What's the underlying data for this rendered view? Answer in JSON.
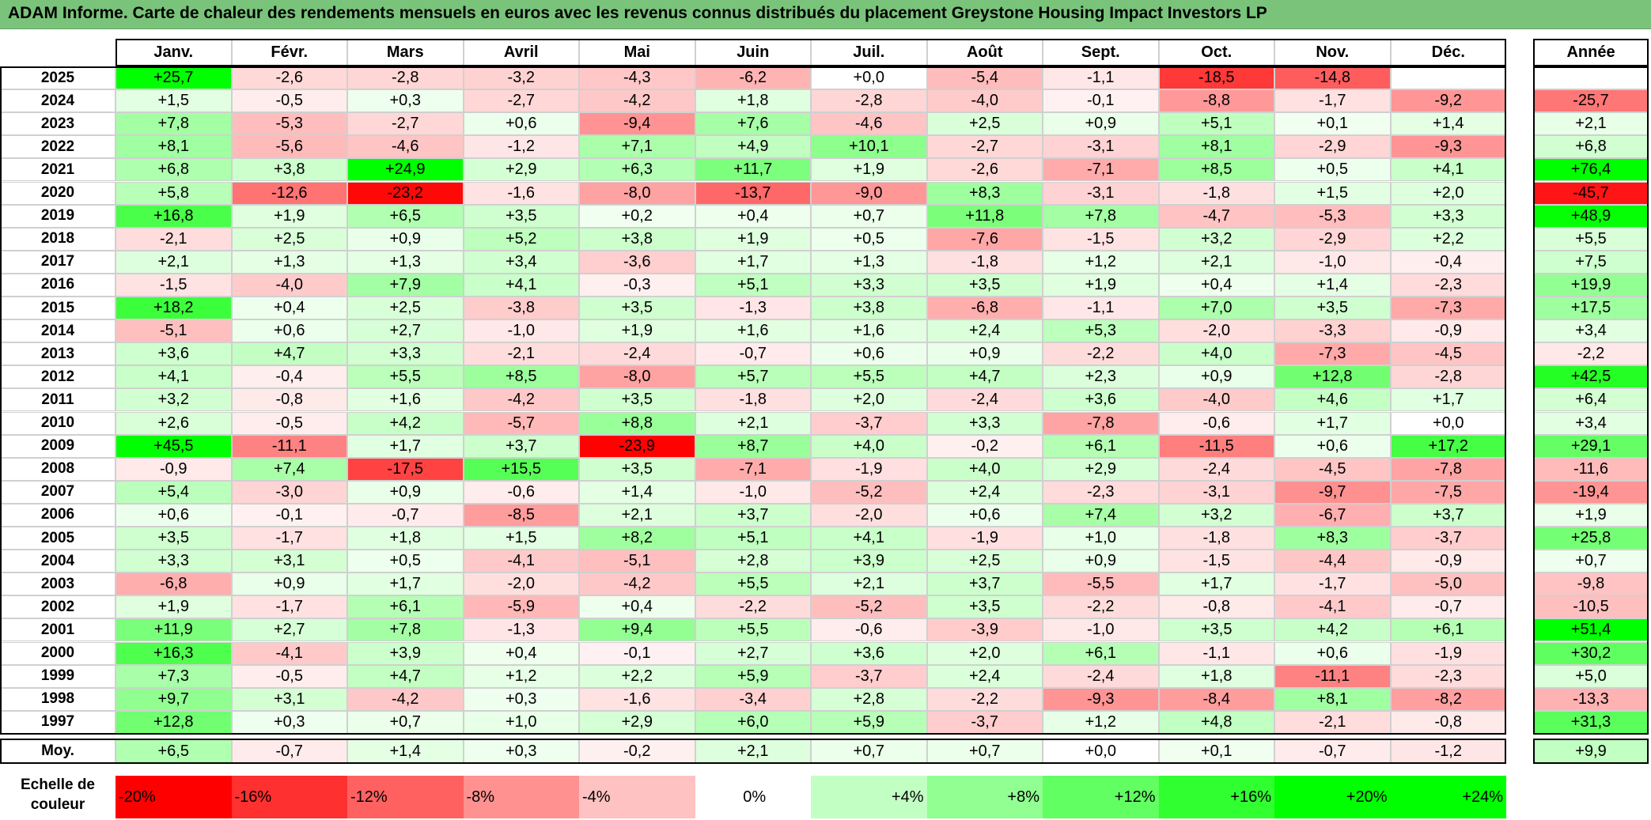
{
  "title": "ADAM Informe. Carte de chaleur des rendements mensuels en euros avec les revenus connus distribués du placement Greystone Housing Impact Investors LP",
  "columns": [
    "Janv.",
    "Févr.",
    "Mars",
    "Avril",
    "Mai",
    "Juin",
    "Juil.",
    "Août",
    "Sept.",
    "Oct.",
    "Nov.",
    "Déc."
  ],
  "year_column_label": "Année",
  "average_label": "Moy.",
  "scale_label": "Echelle de couleur",
  "colors": {
    "red": "#ff0000",
    "white": "#ffffff",
    "green": "#00ff00",
    "title_bar": "#79c47a"
  },
  "scale": [
    {
      "label": "-20%",
      "value": -20
    },
    {
      "label": "-16%",
      "value": -16
    },
    {
      "label": "-12%",
      "value": -12
    },
    {
      "label": "-8%",
      "value": -8
    },
    {
      "label": "-4%",
      "value": -4
    },
    {
      "label": "0%",
      "value": 0
    },
    {
      "label": "+4%",
      "value": 4
    },
    {
      "label": "+8%",
      "value": 8
    },
    {
      "label": "+12%",
      "value": 12
    },
    {
      "label": "+16%",
      "value": 16
    },
    {
      "label": "+20%",
      "value": 20
    },
    {
      "label": "+24%",
      "value": 24
    }
  ],
  "chart_data": {
    "type": "heatmap",
    "title": "ADAM Informe. Carte de chaleur des rendements mensuels en euros avec les revenus connus distribués du placement Greystone Housing Impact Investors LP",
    "rows": [
      {
        "year": "2025",
        "values": [
          25.7,
          -2.6,
          -2.8,
          -3.2,
          -4.3,
          -6.2,
          0.0,
          -5.4,
          -1.1,
          -18.5,
          -14.8,
          null
        ],
        "annual": null
      },
      {
        "year": "2024",
        "values": [
          1.5,
          -0.5,
          0.3,
          -2.7,
          -4.2,
          1.8,
          -2.8,
          -4.0,
          -0.1,
          -8.8,
          -1.7,
          -9.2
        ],
        "annual": -25.7
      },
      {
        "year": "2023",
        "values": [
          7.8,
          -5.3,
          -2.7,
          0.6,
          -9.4,
          7.6,
          -4.6,
          2.5,
          0.9,
          5.1,
          0.1,
          1.4
        ],
        "annual": 2.1
      },
      {
        "year": "2022",
        "values": [
          8.1,
          -5.6,
          -4.6,
          -1.2,
          7.1,
          4.9,
          10.1,
          -2.7,
          -3.1,
          8.1,
          -2.9,
          -9.3
        ],
        "annual": 6.8
      },
      {
        "year": "2021",
        "values": [
          6.8,
          3.8,
          24.9,
          2.9,
          6.3,
          11.7,
          1.9,
          -2.6,
          -7.1,
          8.5,
          0.5,
          4.1
        ],
        "annual": 76.4
      },
      {
        "year": "2020",
        "values": [
          5.8,
          -12.6,
          -23.2,
          -1.6,
          -8.0,
          -13.7,
          -9.0,
          8.3,
          -3.1,
          -1.8,
          1.5,
          2.0
        ],
        "annual": -45.7
      },
      {
        "year": "2019",
        "values": [
          16.8,
          1.9,
          6.5,
          3.5,
          0.2,
          0.4,
          0.7,
          11.8,
          7.8,
          -4.7,
          -5.3,
          3.3
        ],
        "annual": 48.9
      },
      {
        "year": "2018",
        "values": [
          -2.1,
          2.5,
          0.9,
          5.2,
          3.8,
          1.9,
          0.5,
          -7.6,
          -1.5,
          3.2,
          -2.9,
          2.2
        ],
        "annual": 5.5
      },
      {
        "year": "2017",
        "values": [
          2.1,
          1.3,
          1.3,
          3.4,
          -3.6,
          1.7,
          1.3,
          -1.8,
          1.2,
          2.1,
          -1.0,
          -0.4
        ],
        "annual": 7.5
      },
      {
        "year": "2016",
        "values": [
          -1.5,
          -4.0,
          7.9,
          4.1,
          -0.3,
          5.1,
          3.3,
          3.5,
          1.9,
          0.4,
          1.4,
          -2.3
        ],
        "annual": 19.9
      },
      {
        "year": "2015",
        "values": [
          18.2,
          0.4,
          2.5,
          -3.8,
          3.5,
          -1.3,
          3.8,
          -6.8,
          -1.1,
          7.0,
          3.5,
          -7.3
        ],
        "annual": 17.5
      },
      {
        "year": "2014",
        "values": [
          -5.1,
          0.6,
          2.7,
          -1.0,
          1.9,
          1.6,
          1.6,
          2.4,
          5.3,
          -2.0,
          -3.3,
          -0.9
        ],
        "annual": 3.4
      },
      {
        "year": "2013",
        "values": [
          3.6,
          4.7,
          3.3,
          -2.1,
          -2.4,
          -0.7,
          0.6,
          0.9,
          -2.2,
          4.0,
          -7.3,
          -4.5
        ],
        "annual": -2.2
      },
      {
        "year": "2012",
        "values": [
          4.1,
          -0.4,
          5.5,
          8.5,
          -8.0,
          5.7,
          5.5,
          4.7,
          2.3,
          0.9,
          12.8,
          -2.8
        ],
        "annual": 42.5
      },
      {
        "year": "2011",
        "values": [
          3.2,
          -0.8,
          1.6,
          -4.2,
          3.5,
          -1.8,
          2.0,
          -2.4,
          3.6,
          -4.0,
          4.6,
          1.7
        ],
        "annual": 6.4
      },
      {
        "year": "2010",
        "values": [
          2.6,
          -0.5,
          4.2,
          -5.7,
          8.8,
          2.1,
          -3.7,
          3.3,
          -7.8,
          -0.6,
          1.7,
          0.0
        ],
        "annual": 3.4
      },
      {
        "year": "2009",
        "values": [
          45.5,
          -11.1,
          1.7,
          3.7,
          -23.9,
          8.7,
          4.0,
          -0.2,
          6.1,
          -11.5,
          0.6,
          17.2
        ],
        "annual": 29.1
      },
      {
        "year": "2008",
        "values": [
          -0.9,
          7.4,
          -17.5,
          15.5,
          3.5,
          -7.1,
          -1.9,
          4.0,
          2.9,
          -2.4,
          -4.5,
          -7.8
        ],
        "annual": -11.6
      },
      {
        "year": "2007",
        "values": [
          5.4,
          -3.0,
          0.9,
          -0.6,
          1.4,
          -1.0,
          -5.2,
          2.4,
          -2.3,
          -3.1,
          -9.7,
          -7.5
        ],
        "annual": -19.4
      },
      {
        "year": "2006",
        "values": [
          0.6,
          -0.1,
          -0.7,
          -8.5,
          2.1,
          3.7,
          -2.0,
          0.6,
          7.4,
          3.2,
          -6.7,
          3.7
        ],
        "annual": 1.9
      },
      {
        "year": "2005",
        "values": [
          3.5,
          -1.7,
          1.8,
          1.5,
          8.2,
          5.1,
          4.1,
          -1.9,
          1.0,
          -1.8,
          8.3,
          -3.7
        ],
        "annual": 25.8
      },
      {
        "year": "2004",
        "values": [
          3.3,
          3.1,
          0.5,
          -4.1,
          -5.1,
          2.8,
          3.9,
          2.5,
          0.9,
          -1.5,
          -4.4,
          -0.9
        ],
        "annual": 0.7
      },
      {
        "year": "2003",
        "values": [
          -6.8,
          0.9,
          1.7,
          -2.0,
          -4.2,
          5.5,
          2.1,
          3.7,
          -5.5,
          1.7,
          -1.7,
          -5.0
        ],
        "annual": -9.8
      },
      {
        "year": "2002",
        "values": [
          1.9,
          -1.7,
          6.1,
          -5.9,
          0.4,
          -2.2,
          -5.2,
          3.5,
          -2.2,
          -0.8,
          -4.1,
          -0.7
        ],
        "annual": -10.5
      },
      {
        "year": "2001",
        "values": [
          11.9,
          2.7,
          7.8,
          -1.3,
          9.4,
          5.5,
          -0.6,
          -3.9,
          -1.0,
          3.5,
          4.2,
          6.1
        ],
        "annual": 51.4
      },
      {
        "year": "2000",
        "values": [
          16.3,
          -4.1,
          3.9,
          0.4,
          -0.1,
          2.7,
          3.6,
          2.0,
          6.1,
          -1.1,
          0.6,
          -1.9
        ],
        "annual": 30.2
      },
      {
        "year": "1999",
        "values": [
          7.3,
          -0.5,
          4.7,
          1.2,
          2.2,
          5.9,
          -3.7,
          2.4,
          -2.4,
          1.8,
          -11.1,
          -2.3
        ],
        "annual": 5.0
      },
      {
        "year": "1998",
        "values": [
          9.7,
          3.1,
          -4.2,
          0.3,
          -1.6,
          -3.4,
          2.8,
          -2.2,
          -9.3,
          -8.4,
          8.1,
          -8.2
        ],
        "annual": -13.3
      },
      {
        "year": "1997",
        "values": [
          12.8,
          0.3,
          0.7,
          1.0,
          2.9,
          6.0,
          5.9,
          -3.7,
          1.2,
          4.8,
          -2.1,
          -0.8
        ],
        "annual": 31.3
      }
    ],
    "average": {
      "values": [
        6.5,
        -0.7,
        1.4,
        0.3,
        -0.2,
        2.1,
        0.7,
        0.7,
        0.0,
        0.1,
        -0.7,
        -1.2
      ],
      "annual": 9.9
    }
  }
}
